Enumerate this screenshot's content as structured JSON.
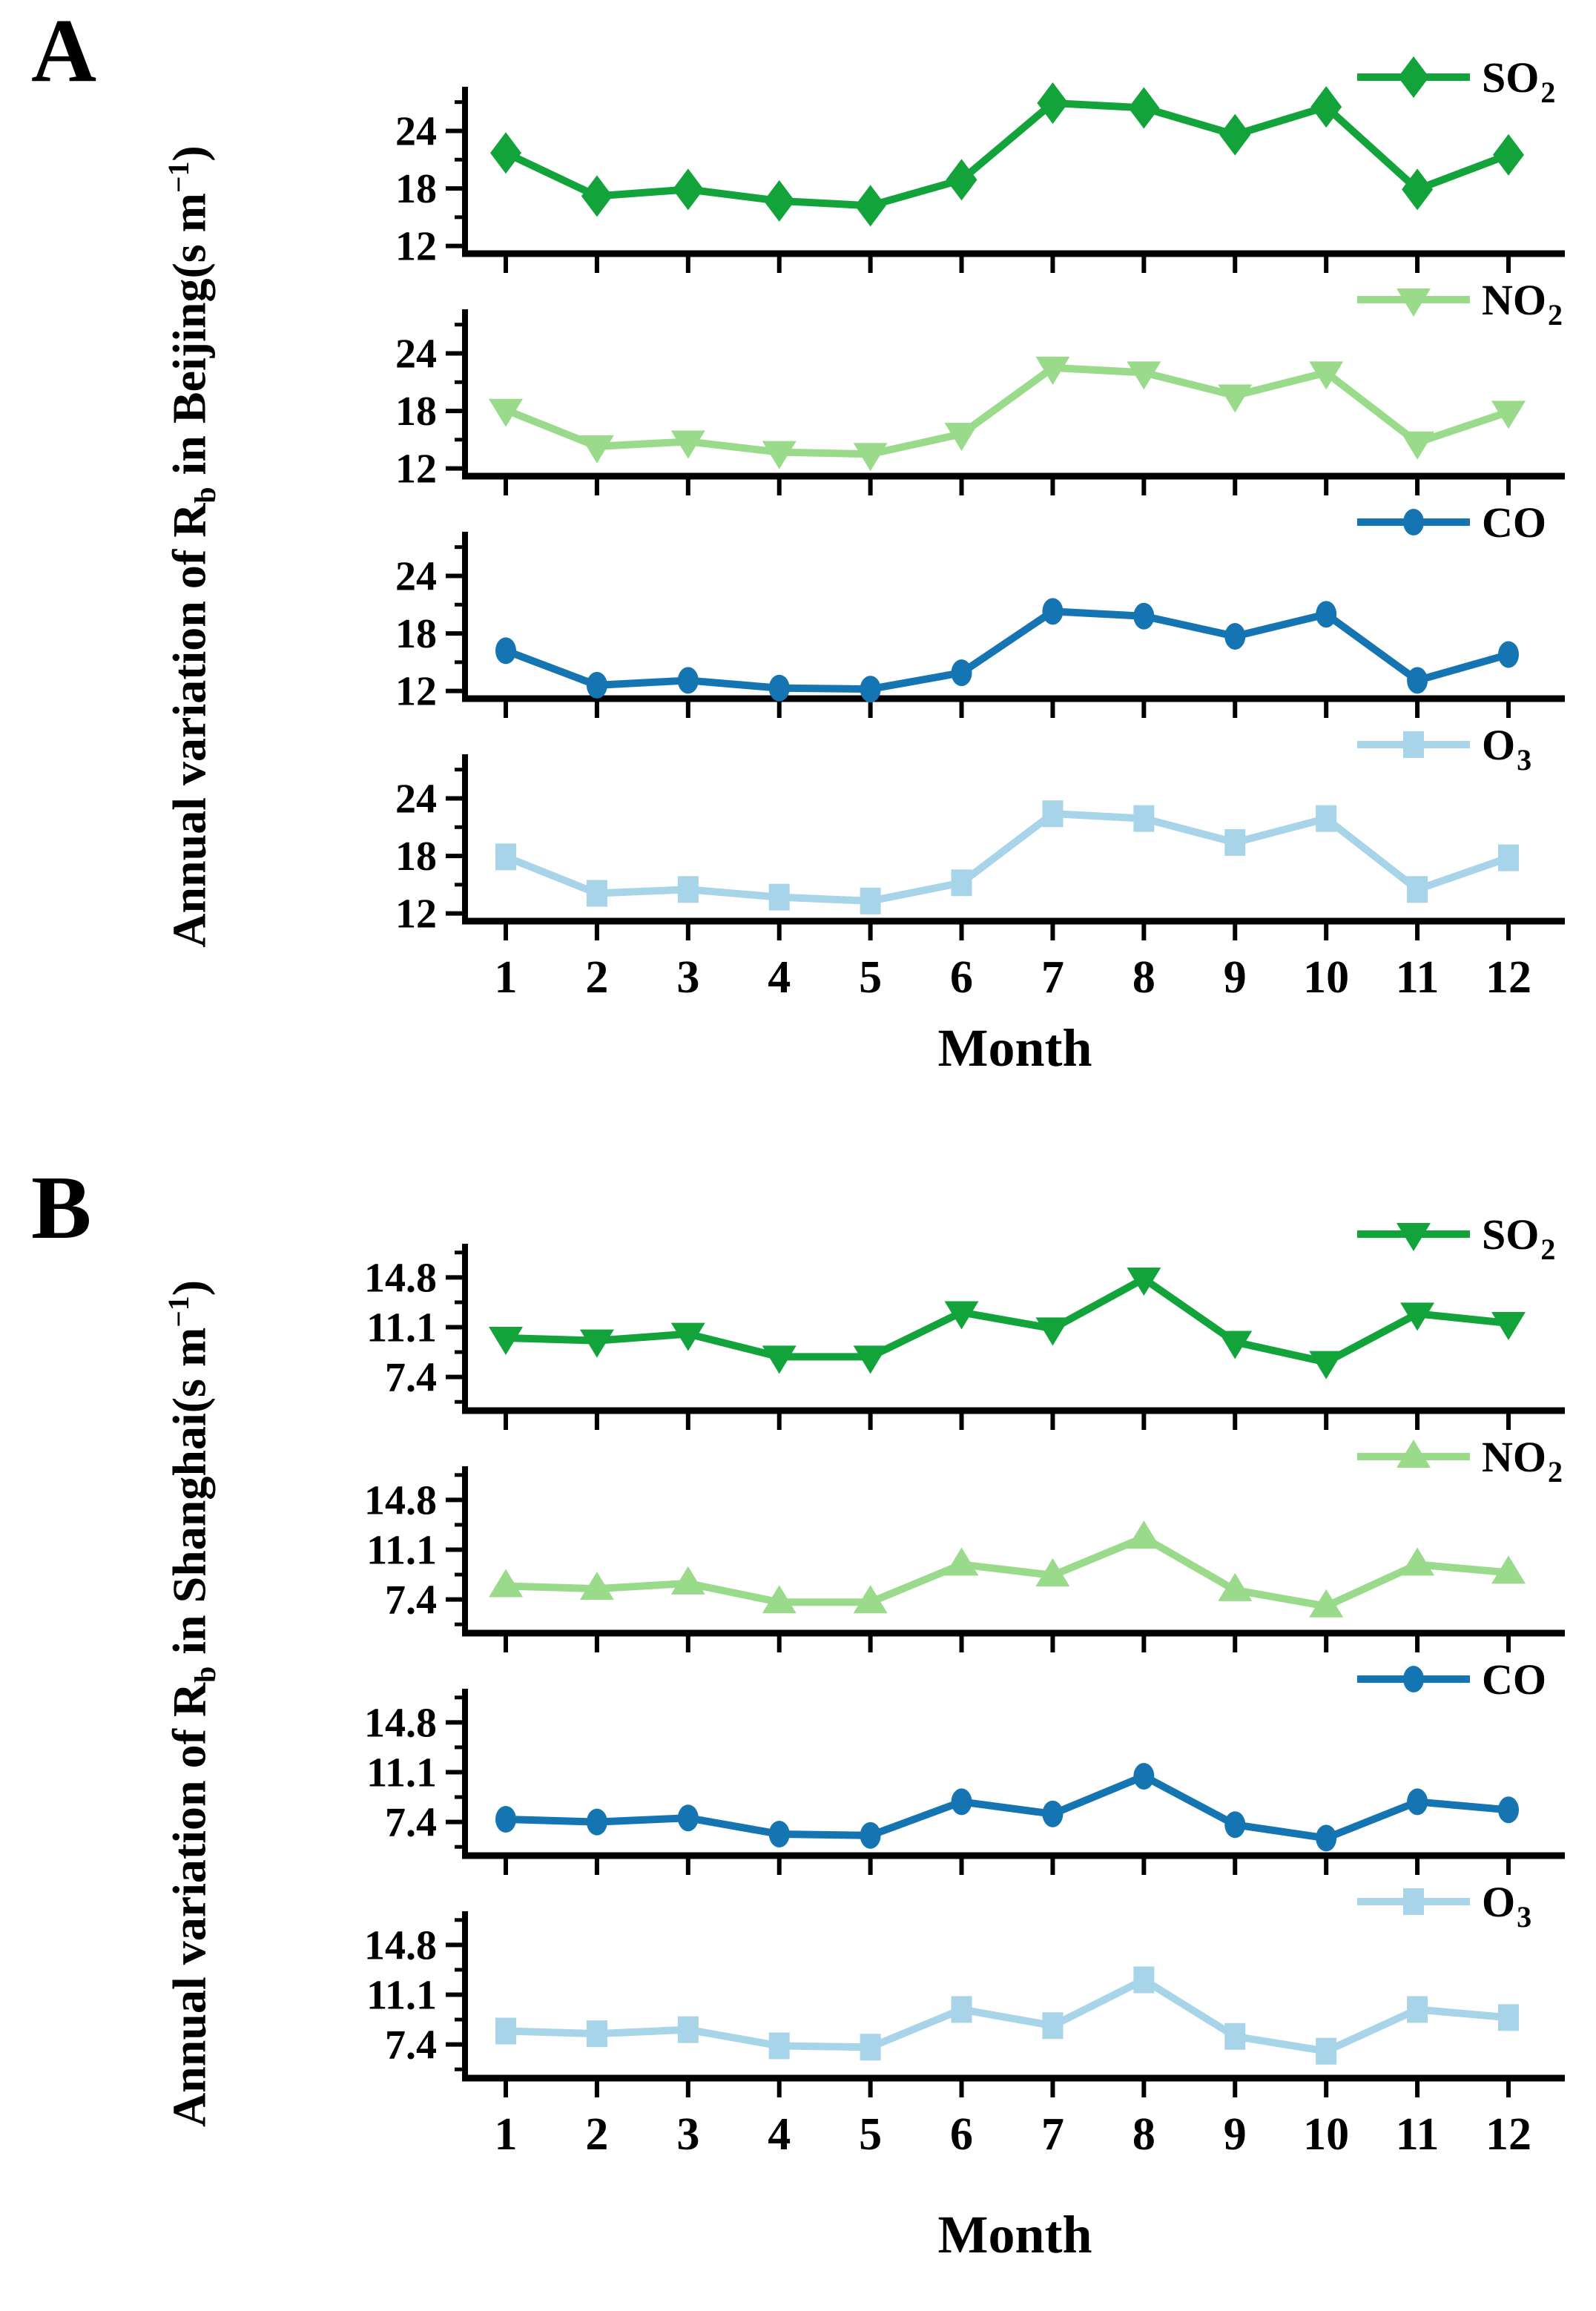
{
  "figure": {
    "panels": [
      {
        "label": "A",
        "x_label": "Month",
        "y_title_parts": {
          "prefix": "Annual variation of R",
          "sub": "b",
          "mid": " in Beijing(s m",
          "sup": "−1",
          "suffix": ")"
        }
      },
      {
        "label": "B",
        "x_label": "Month",
        "y_title_parts": {
          "prefix": "Annual variation of R",
          "sub": "b",
          "mid": " in Shanghai(s m",
          "sup": "−1",
          "suffix": ")"
        }
      }
    ]
  },
  "chart_data": [
    {
      "type": "line",
      "panel": "A",
      "title": "",
      "xlabel": "Month",
      "ylabel": "Annual variation of Rb in Beijing(s m−1)",
      "x": [
        1,
        2,
        3,
        4,
        5,
        6,
        7,
        8,
        9,
        10,
        11,
        12
      ],
      "xlim": [
        0.55,
        12.65
      ],
      "ylim": [
        11.2,
        28.6
      ],
      "yticks": [
        12,
        18,
        24
      ],
      "ytick_labels": [
        "12",
        "18",
        "24"
      ],
      "yticks_minor": [
        15,
        21,
        27
      ],
      "grid": false,
      "legend_position": "top-right",
      "series": [
        {
          "name": "SO2",
          "legend_main": "SO",
          "legend_sub": "2",
          "marker": "diamond",
          "color": "#12a33b",
          "values": [
            21.7,
            17.2,
            17.9,
            16.7,
            16.2,
            18.9,
            26.9,
            26.4,
            23.6,
            26.5,
            17.9,
            21.5
          ]
        },
        {
          "name": "NO2",
          "legend_main": "NO",
          "legend_sub": "2",
          "marker": "triangle-down",
          "color": "#9adb8b",
          "values": [
            18.1,
            14.3,
            14.8,
            13.7,
            13.5,
            15.6,
            22.5,
            22.0,
            19.6,
            22.0,
            14.7,
            17.9
          ]
        },
        {
          "name": "CO",
          "legend_main": "CO",
          "legend_sub": "",
          "marker": "circle",
          "color": "#1475b2",
          "values": [
            16.2,
            12.6,
            13.1,
            12.3,
            12.2,
            13.9,
            20.3,
            19.8,
            17.7,
            20.0,
            13.1,
            15.8
          ]
        },
        {
          "name": "O3",
          "legend_main": "O",
          "legend_sub": "3",
          "marker": "square",
          "color": "#a7d4e8",
          "values": [
            17.9,
            14.1,
            14.5,
            13.7,
            13.3,
            15.2,
            22.4,
            21.9,
            19.4,
            21.9,
            14.5,
            17.8
          ]
        }
      ]
    },
    {
      "type": "line",
      "panel": "B",
      "title": "",
      "xlabel": "Month",
      "ylabel": "Annual variation of Rb in Shanghai(s m−1)",
      "x": [
        1,
        2,
        3,
        4,
        5,
        6,
        7,
        8,
        9,
        10,
        11,
        12
      ],
      "xlim": [
        0.55,
        12.65
      ],
      "ylim": [
        4.9,
        17.3
      ],
      "yticks": [
        7.4,
        11.1,
        14.8
      ],
      "ytick_labels": [
        "7.4",
        "11.1",
        "14.8"
      ],
      "yticks_minor": [
        5.55,
        9.25,
        12.95,
        16.65
      ],
      "grid": false,
      "legend_position": "top-right",
      "series": [
        {
          "name": "SO2",
          "legend_main": "SO",
          "legend_sub": "2",
          "marker": "triangle-down",
          "color": "#12a33b",
          "values": [
            10.3,
            10.1,
            10.6,
            8.9,
            8.9,
            12.2,
            11.0,
            14.7,
            10.0,
            8.5,
            12.1,
            11.4
          ]
        },
        {
          "name": "NO2",
          "legend_main": "NO",
          "legend_sub": "2",
          "marker": "triangle-up",
          "color": "#9adb8b",
          "values": [
            8.4,
            8.2,
            8.6,
            7.2,
            7.2,
            10.0,
            9.2,
            12.0,
            8.1,
            6.9,
            10.0,
            9.4
          ]
        },
        {
          "name": "CO",
          "legend_main": "CO",
          "legend_sub": "",
          "marker": "circle",
          "color": "#1475b2",
          "values": [
            7.6,
            7.4,
            7.7,
            6.5,
            6.4,
            8.9,
            8.0,
            10.8,
            7.2,
            6.2,
            8.9,
            8.3
          ]
        },
        {
          "name": "O3",
          "legend_main": "O",
          "legend_sub": "3",
          "marker": "square",
          "color": "#a7d4e8",
          "values": [
            8.4,
            8.2,
            8.5,
            7.3,
            7.2,
            10.0,
            8.8,
            12.2,
            8.0,
            6.9,
            10.0,
            9.4
          ]
        }
      ]
    }
  ]
}
